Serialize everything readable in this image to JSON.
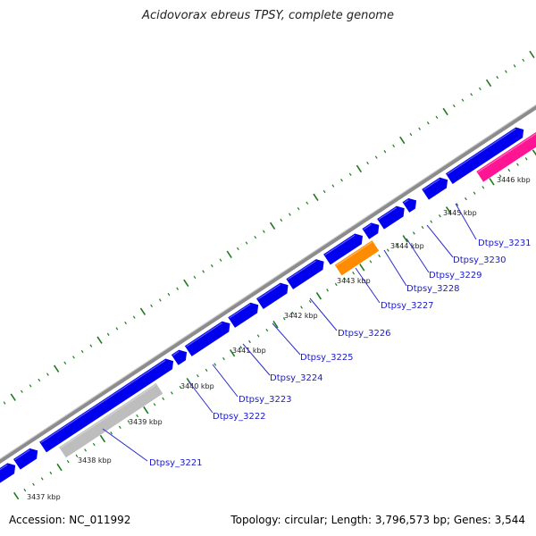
{
  "title": "Acidovorax ebreus TPSY, complete genome",
  "accession": "Accession: NC_011992",
  "summary": "Topology: circular; Length: 3,796,573 bp; Genes: 3,544",
  "colors": {
    "backbone": "#8c8c8c",
    "cds": "#0000ee",
    "rna": "#bdbdbd",
    "highlight_orange": "#ff8c00",
    "highlight_pink": "#ff1493",
    "tick": "#1f7a1f",
    "label_line": "#2d2dcc",
    "label_text": "#1a1acc"
  },
  "kbp_labels": [
    "3437 kbp",
    "3438 kbp",
    "3439 kbp",
    "3440 kbp",
    "3441 kbp",
    "3442 kbp",
    "3443 kbp",
    "3444 kbp",
    "3445 kbp",
    "3446 kbp"
  ],
  "gene_labels": [
    "Dtpsy_3221",
    "Dtpsy_3222",
    "Dtpsy_3223",
    "Dtpsy_3224",
    "Dtpsy_3225",
    "Dtpsy_3226",
    "Dtpsy_3227",
    "Dtpsy_3228",
    "Dtpsy_3229",
    "Dtpsy_3230",
    "Dtpsy_3231"
  ]
}
